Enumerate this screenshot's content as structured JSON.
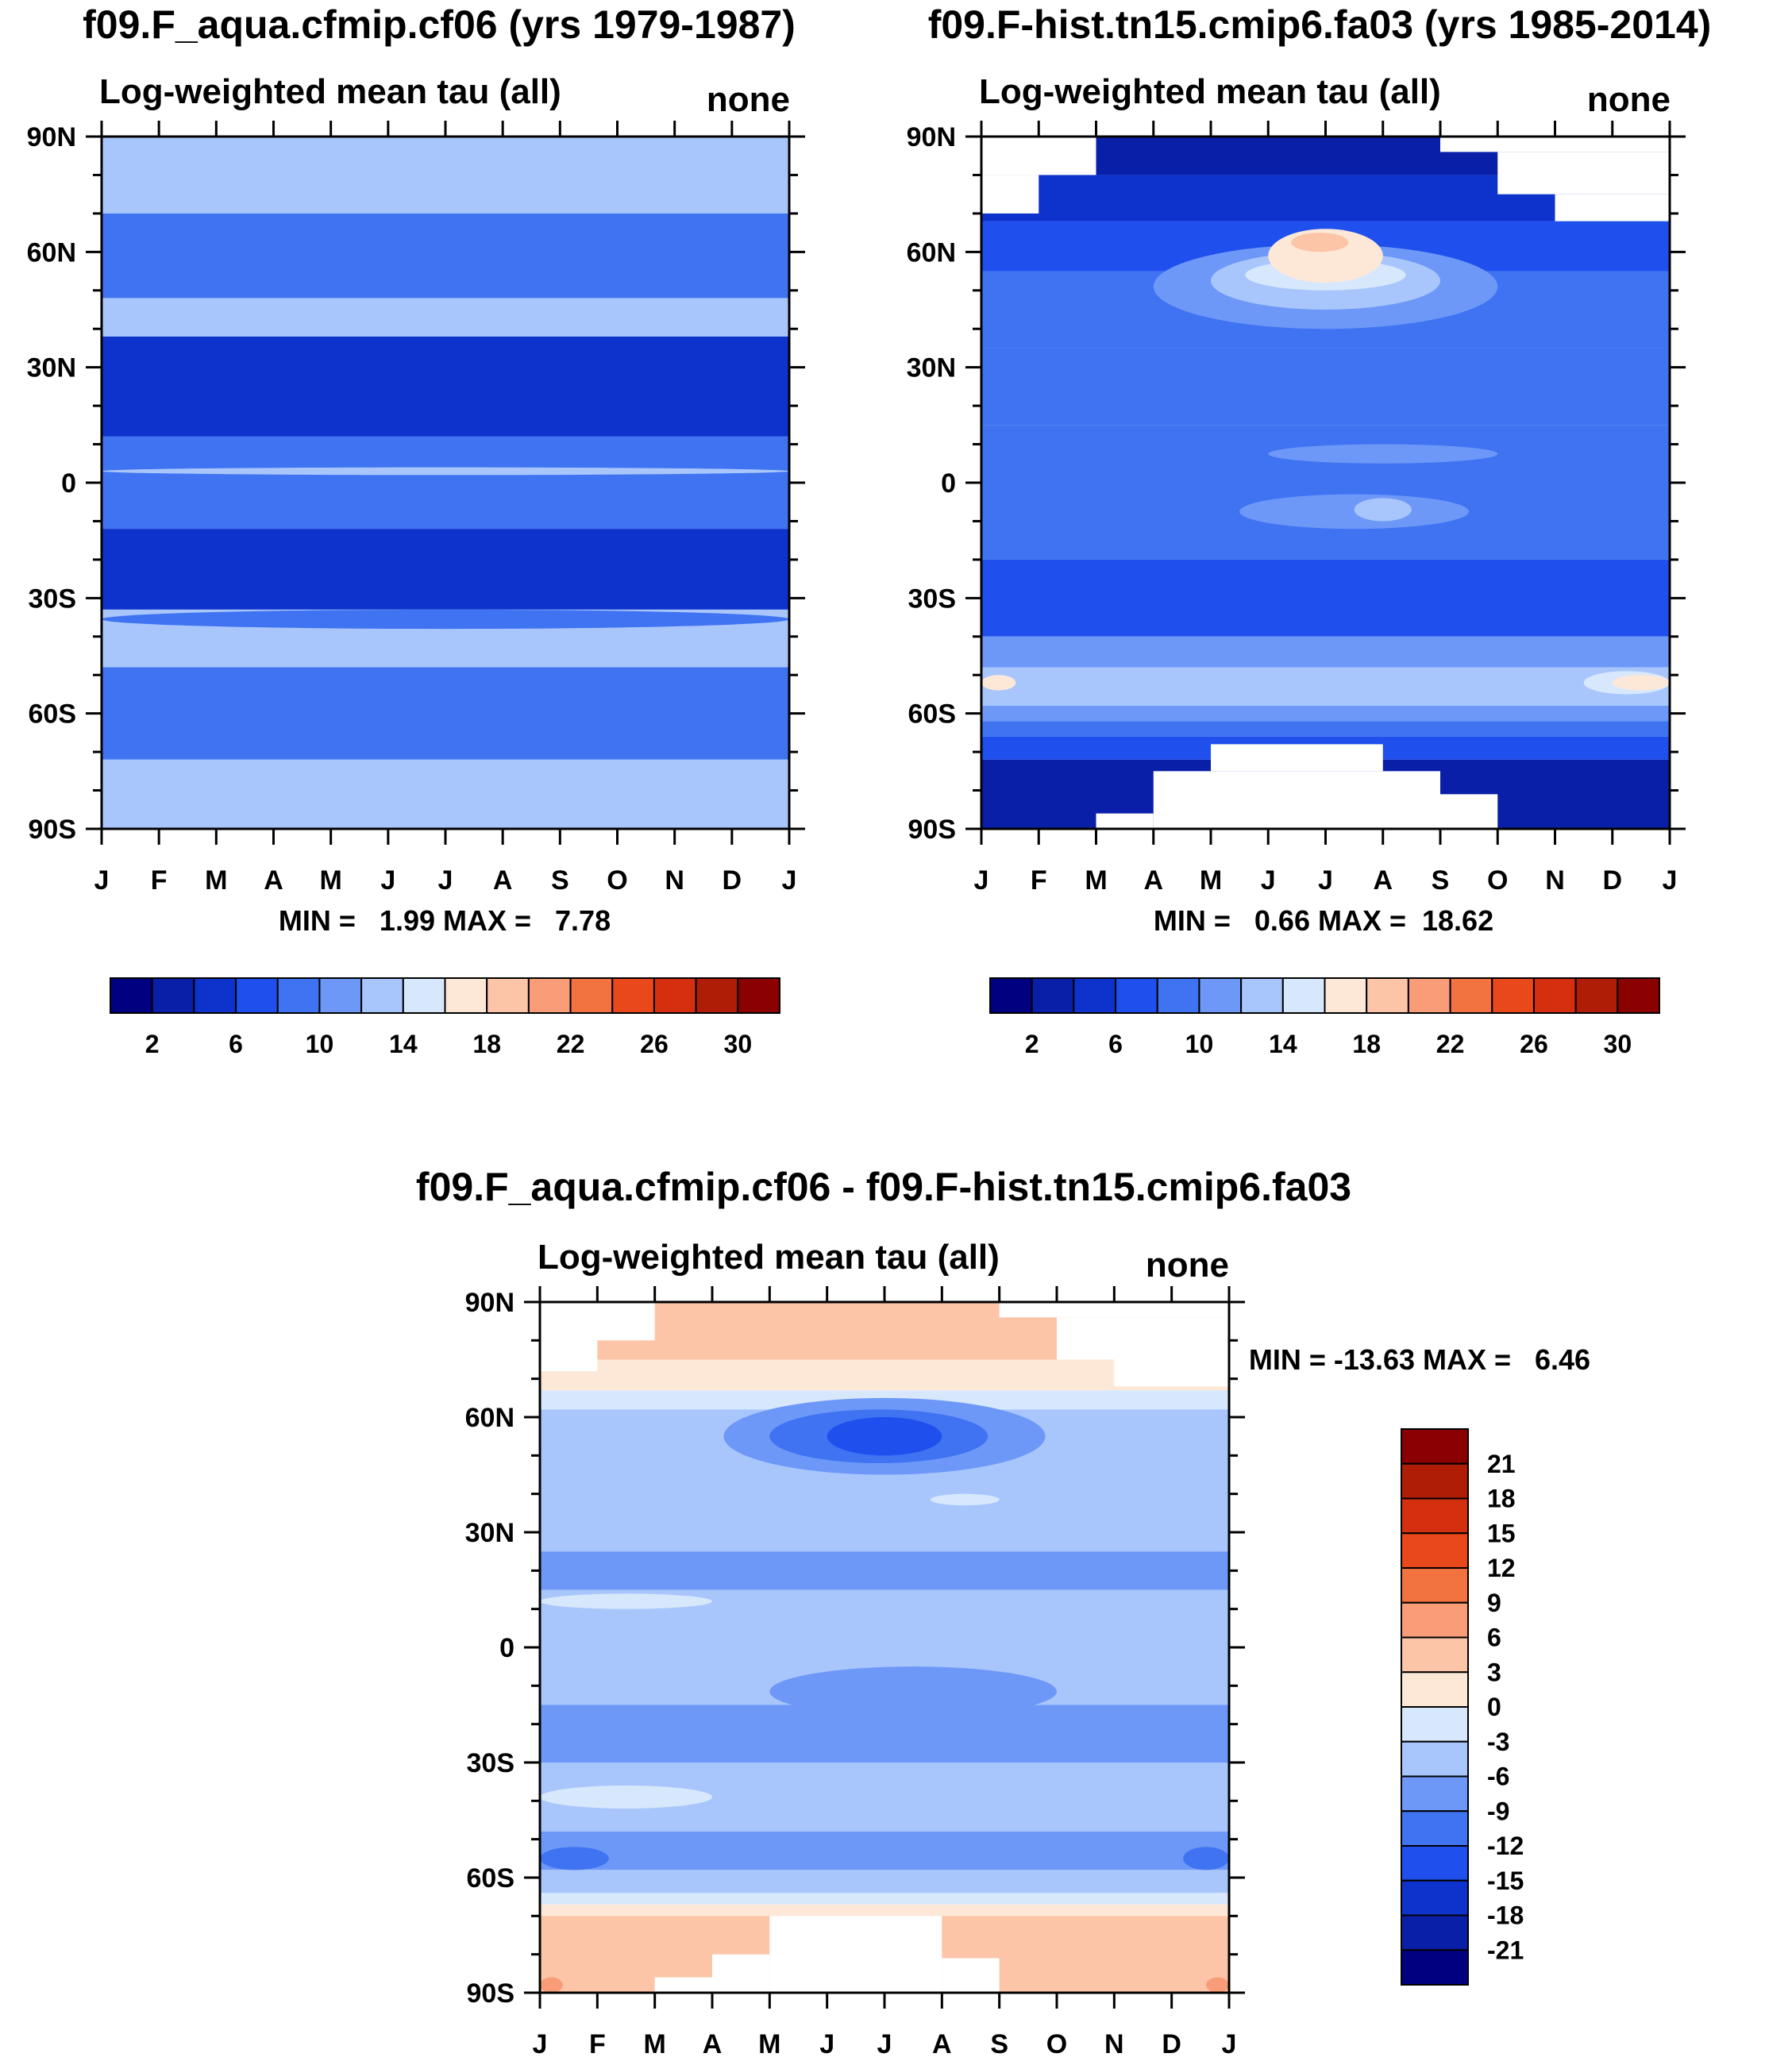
{
  "figure": {
    "domain_note": "NCL-style latitude-month contour panels",
    "lat_labels": [
      "90N",
      "60N",
      "30N",
      "0",
      "30S",
      "60S",
      "90S"
    ],
    "month_labels": [
      "J",
      "F",
      "M",
      "A",
      "M",
      "J",
      "J",
      "A",
      "S",
      "O",
      "N",
      "D",
      "J"
    ]
  },
  "chart_data": [
    {
      "type": "heatmap",
      "id": "panel-left",
      "title": "f09.F_aqua.cfmip.cf06 (yrs 1979-1987)",
      "subtitle_left": "Log-weighted mean tau (all)",
      "subtitle_right": "none",
      "stats_text": "MIN =   1.99 MAX =   7.78",
      "min": 1.99,
      "max": 7.78,
      "ylim": [
        -90,
        90
      ],
      "xlim": [
        0,
        12
      ],
      "colorbar": {
        "orientation": "horizontal",
        "levels": [
          0,
          2,
          4,
          6,
          8,
          10,
          12,
          14,
          16,
          18,
          20,
          22,
          24,
          26,
          28,
          30,
          32
        ],
        "labels": [
          "2",
          "6",
          "10",
          "14",
          "18",
          "22",
          "26",
          "30"
        ],
        "colors": [
          "#000080",
          "#0a1fa8",
          "#0d33cc",
          "#1f4fed",
          "#3f73f2",
          "#6e98f7",
          "#a8c6fb",
          "#d7e8fd",
          "#fde8d7",
          "#fcc5a8",
          "#f99c78",
          "#f2733f",
          "#e9491a",
          "#d43010",
          "#b01d07",
          "#8b0000"
        ]
      },
      "bands": [
        {
          "lat_range": [
            70,
            90
          ],
          "level": 6
        },
        {
          "lat_range": [
            48,
            70
          ],
          "level": 4
        },
        {
          "lat_range": [
            38,
            48
          ],
          "level": 6
        },
        {
          "lat_range": [
            12,
            38
          ],
          "level": 2
        },
        {
          "lat_range": [
            -12,
            12
          ],
          "level": 4
        },
        {
          "lat_range": [
            -33,
            -12
          ],
          "level": 2
        },
        {
          "lat_range": [
            -48,
            -33
          ],
          "level": 6
        },
        {
          "lat_range": [
            -72,
            -48
          ],
          "level": 4
        },
        {
          "lat_range": [
            -90,
            -72
          ],
          "level": 6
        }
      ],
      "patches": [
        {
          "months": [
            0,
            12
          ],
          "lat": [
            -38,
            -33
          ],
          "level": 4
        },
        {
          "months": [
            0,
            12
          ],
          "lat": [
            2,
            4
          ],
          "level": 6
        }
      ]
    },
    {
      "type": "heatmap",
      "id": "panel-right",
      "title": "f09.F-hist.tn15.cmip6.fa03 (yrs 1985-2014)",
      "subtitle_left": "Log-weighted mean tau (all)",
      "subtitle_right": "none",
      "stats_text": "MIN =   0.66 MAX =  18.62",
      "min": 0.66,
      "max": 18.62,
      "ylim": [
        -90,
        90
      ],
      "xlim": [
        0,
        12
      ],
      "colorbar": {
        "orientation": "horizontal",
        "levels": [
          0,
          2,
          4,
          6,
          8,
          10,
          12,
          14,
          16,
          18,
          20,
          22,
          24,
          26,
          28,
          30,
          32
        ],
        "labels": [
          "2",
          "6",
          "10",
          "14",
          "18",
          "22",
          "26",
          "30"
        ],
        "colors": [
          "#000080",
          "#0a1fa8",
          "#0d33cc",
          "#1f4fed",
          "#3f73f2",
          "#6e98f7",
          "#a8c6fb",
          "#d7e8fd",
          "#fde8d7",
          "#fcc5a8",
          "#f99c78",
          "#f2733f",
          "#e9491a",
          "#d43010",
          "#b01d07",
          "#8b0000"
        ]
      },
      "bands": [
        {
          "lat_range": [
            80,
            90
          ],
          "level": 1
        },
        {
          "lat_range": [
            68,
            80
          ],
          "level": 2
        },
        {
          "lat_range": [
            55,
            68
          ],
          "level": 3
        },
        {
          "lat_range": [
            35,
            55
          ],
          "level": 4
        },
        {
          "lat_range": [
            15,
            35
          ],
          "level": 4
        },
        {
          "lat_range": [
            -20,
            15
          ],
          "level": 4
        },
        {
          "lat_range": [
            -40,
            -20
          ],
          "level": 3
        },
        {
          "lat_range": [
            -48,
            -40
          ],
          "level": 5
        },
        {
          "lat_range": [
            -58,
            -48
          ],
          "level": 6
        },
        {
          "lat_range": [
            -62,
            -58
          ],
          "level": 5
        },
        {
          "lat_range": [
            -66,
            -62
          ],
          "level": 4
        },
        {
          "lat_range": [
            -72,
            -66
          ],
          "level": 3
        },
        {
          "lat_range": [
            -90,
            -72
          ],
          "level": 1
        }
      ],
      "patches": [
        {
          "months": [
            3,
            9
          ],
          "lat": [
            40,
            62
          ],
          "level": 5
        },
        {
          "months": [
            4,
            8
          ],
          "lat": [
            45,
            60
          ],
          "level": 6
        },
        {
          "months": [
            4.6,
            7.4
          ],
          "lat": [
            50,
            58
          ],
          "level": 7
        },
        {
          "months": [
            5,
            7
          ],
          "lat": [
            52,
            66
          ],
          "level": 8
        },
        {
          "months": [
            5.4,
            6.4
          ],
          "lat": [
            60,
            65
          ],
          "level": 9
        },
        {
          "months": [
            5,
            9
          ],
          "lat": [
            5,
            10
          ],
          "level": 5
        },
        {
          "months": [
            4.5,
            8.5
          ],
          "lat": [
            -12,
            -3
          ],
          "level": 5
        },
        {
          "months": [
            6.5,
            7.5
          ],
          "lat": [
            -10,
            -4
          ],
          "level": 6
        },
        {
          "months": [
            0,
            0.6
          ],
          "lat": [
            -54,
            -50
          ],
          "level": 8
        },
        {
          "months": [
            10.5,
            12
          ],
          "lat": [
            -55,
            -49
          ],
          "level": 7
        },
        {
          "months": [
            11,
            12
          ],
          "lat": [
            -54,
            -50
          ],
          "level": 8
        }
      ],
      "missing": [
        {
          "months": [
            0,
            2
          ],
          "lat": [
            80,
            90
          ]
        },
        {
          "months": [
            0,
            1
          ],
          "lat": [
            70,
            80
          ]
        },
        {
          "months": [
            8,
            12
          ],
          "lat": [
            86,
            90
          ]
        },
        {
          "months": [
            9,
            12
          ],
          "lat": [
            75,
            86
          ]
        },
        {
          "months": [
            10,
            12
          ],
          "lat": [
            68,
            75
          ]
        },
        {
          "months": [
            3,
            8
          ],
          "lat": [
            -90,
            -75
          ]
        },
        {
          "months": [
            4,
            7
          ],
          "lat": [
            -75,
            -68
          ]
        },
        {
          "months": [
            2,
            3
          ],
          "lat": [
            -90,
            -86
          ]
        },
        {
          "months": [
            8,
            9
          ],
          "lat": [
            -90,
            -81
          ]
        }
      ]
    },
    {
      "type": "heatmap",
      "id": "panel-diff",
      "title": "f09.F_aqua.cfmip.cf06 - f09.F-hist.tn15.cmip6.fa03",
      "subtitle_left": "Log-weighted mean tau (all)",
      "subtitle_right": "none",
      "stats_text": "MIN = -13.63 MAX =   6.46",
      "min": -13.63,
      "max": 6.46,
      "ylim": [
        -90,
        90
      ],
      "xlim": [
        0,
        12
      ],
      "colorbar": {
        "orientation": "vertical",
        "levels": [
          -24,
          -21,
          -18,
          -15,
          -12,
          -9,
          -6,
          -3,
          0,
          3,
          6,
          9,
          12,
          15,
          18,
          21,
          24
        ],
        "labels": [
          "21",
          "18",
          "15",
          "12",
          "9",
          "6",
          "3",
          "0",
          "-3",
          "-6",
          "-9",
          "-12",
          "-15",
          "-18",
          "-21"
        ],
        "colors": [
          "#000080",
          "#0a1fa8",
          "#0d33cc",
          "#1f4fed",
          "#3f73f2",
          "#6e98f7",
          "#a8c6fb",
          "#d7e8fd",
          "#fde8d7",
          "#fcc5a8",
          "#f99c78",
          "#f2733f",
          "#e9491a",
          "#d43010",
          "#b01d07",
          "#8b0000"
        ]
      },
      "bands": [
        {
          "lat_range": [
            75,
            90
          ],
          "level": 9
        },
        {
          "lat_range": [
            67,
            75
          ],
          "level": 8
        },
        {
          "lat_range": [
            62,
            67
          ],
          "level": 7
        },
        {
          "lat_range": [
            25,
            62
          ],
          "level": 6
        },
        {
          "lat_range": [
            15,
            25
          ],
          "level": 5
        },
        {
          "lat_range": [
            -15,
            15
          ],
          "level": 6
        },
        {
          "lat_range": [
            -30,
            -15
          ],
          "level": 5
        },
        {
          "lat_range": [
            -48,
            -30
          ],
          "level": 6
        },
        {
          "lat_range": [
            -58,
            -48
          ],
          "level": 5
        },
        {
          "lat_range": [
            -64,
            -58
          ],
          "level": 6
        },
        {
          "lat_range": [
            -67,
            -64
          ],
          "level": 7
        },
        {
          "lat_range": [
            -70,
            -67
          ],
          "level": 8
        },
        {
          "lat_range": [
            -90,
            -70
          ],
          "level": 9
        }
      ],
      "patches": [
        {
          "months": [
            3.2,
            8.8
          ],
          "lat": [
            45,
            65
          ],
          "level": 5
        },
        {
          "months": [
            4,
            7.8
          ],
          "lat": [
            48,
            62
          ],
          "level": 4
        },
        {
          "months": [
            5,
            7
          ],
          "lat": [
            50,
            60
          ],
          "level": 3
        },
        {
          "months": [
            0,
            1.2
          ],
          "lat": [
            -58,
            -52
          ],
          "level": 4
        },
        {
          "months": [
            11.2,
            12
          ],
          "lat": [
            -58,
            -52
          ],
          "level": 4
        },
        {
          "months": [
            0,
            3
          ],
          "lat": [
            -42,
            -36
          ],
          "level": 7
        },
        {
          "months": [
            0,
            3
          ],
          "lat": [
            10,
            14
          ],
          "level": 7
        },
        {
          "months": [
            6.8,
            8
          ],
          "lat": [
            37,
            40
          ],
          "level": 7
        },
        {
          "months": [
            4,
            9
          ],
          "lat": [
            -18,
            -5
          ],
          "level": 5
        },
        {
          "months": [
            0,
            0.4
          ],
          "lat": [
            -90,
            -86
          ],
          "level": 10
        },
        {
          "months": [
            11.6,
            12
          ],
          "lat": [
            -90,
            -86
          ],
          "level": 10
        }
      ],
      "missing": [
        {
          "months": [
            0,
            2
          ],
          "lat": [
            80,
            90
          ]
        },
        {
          "months": [
            0,
            1
          ],
          "lat": [
            72,
            80
          ]
        },
        {
          "months": [
            8,
            12
          ],
          "lat": [
            86,
            90
          ]
        },
        {
          "months": [
            9,
            12
          ],
          "lat": [
            75,
            86
          ]
        },
        {
          "months": [
            10,
            12
          ],
          "lat": [
            68,
            75
          ]
        },
        {
          "months": [
            4,
            7
          ],
          "lat": [
            -90,
            -70
          ]
        },
        {
          "months": [
            3,
            4
          ],
          "lat": [
            -90,
            -80
          ]
        },
        {
          "months": [
            2,
            3
          ],
          "lat": [
            -90,
            -86
          ]
        },
        {
          "months": [
            7,
            8
          ],
          "lat": [
            -90,
            -81
          ]
        }
      ]
    }
  ]
}
